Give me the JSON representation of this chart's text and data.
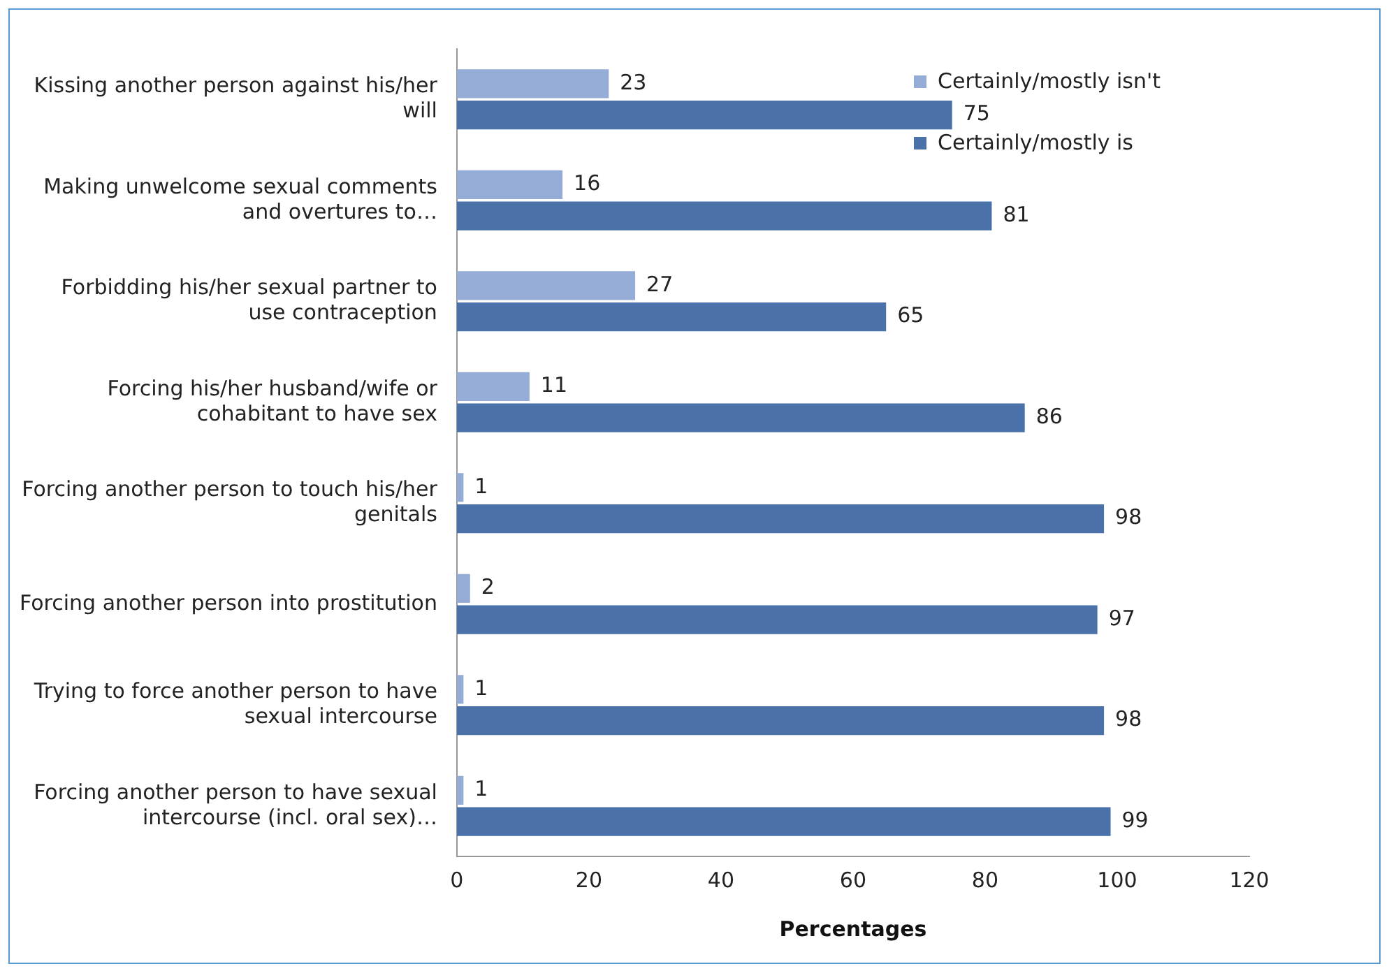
{
  "chart_data": {
    "type": "bar",
    "orientation": "horizontal",
    "xlabel": "Percentages",
    "categories": [
      "Kissing another person against his/her will",
      "Making unwelcome sexual comments and overtures to…",
      "Forbidding his/her sexual partner to use contraception",
      "Forcing his/her husband/wife or cohabitant to have sex",
      "Forcing another person to touch his/her genitals",
      "Forcing another person into prostitution",
      "Trying to force another person to have sexual intercourse",
      "Forcing another person to have sexual intercourse (incl. oral sex)…"
    ],
    "series": [
      {
        "name": "Certainly/mostly isn't",
        "color": "#95acd6",
        "values": [
          23,
          16,
          27,
          11,
          1,
          2,
          1,
          1
        ]
      },
      {
        "name": "Certainly/mostly is",
        "color": "#4a72a8",
        "values": [
          75,
          81,
          65,
          86,
          98,
          97,
          98,
          99
        ]
      }
    ],
    "xlim": [
      0,
      120
    ],
    "xticks": [
      0,
      20,
      40,
      60,
      80,
      100,
      120
    ],
    "grid": false,
    "legend": "top right",
    "data_labels": true
  }
}
